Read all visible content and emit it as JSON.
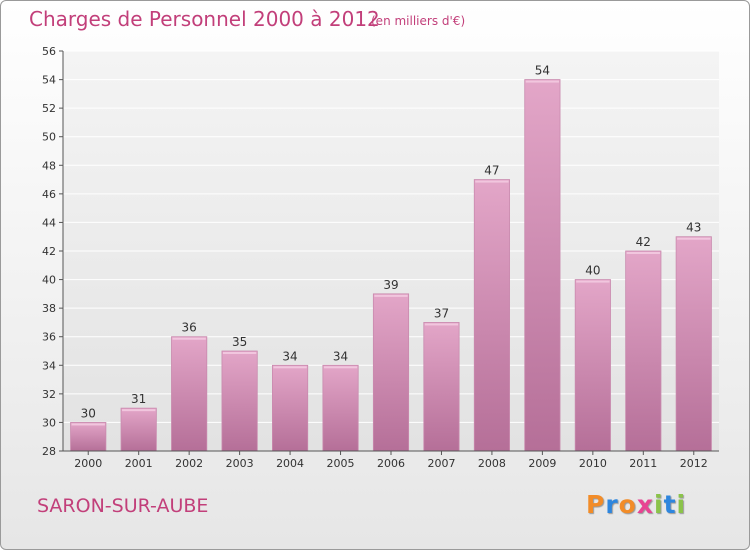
{
  "header": {
    "title": "Charges de Personnel 2000 à 2012",
    "subtitle": "(en milliers d'€)"
  },
  "footer": {
    "commune": "SARON-SUR-AUBE",
    "logo_text": "Proxiti",
    "logo_colors": [
      "#f28c28",
      "#2e86de",
      "#f28c28",
      "#e84393",
      "#8bc34a",
      "#2e86de",
      "#8bc34a"
    ]
  },
  "chart_data": {
    "type": "bar",
    "categories": [
      "2000",
      "2001",
      "2002",
      "2003",
      "2004",
      "2005",
      "2006",
      "2007",
      "2008",
      "2009",
      "2010",
      "2011",
      "2012"
    ],
    "values": [
      30,
      31,
      36,
      35,
      34,
      34,
      39,
      37,
      47,
      54,
      40,
      42,
      43
    ],
    "data_labels": [
      "30",
      "31",
      "36",
      "35",
      "34",
      "34",
      "39",
      "37",
      "47",
      "54",
      "40",
      "42",
      "43"
    ],
    "ylim": [
      28,
      56
    ],
    "yticks": [
      28,
      30,
      32,
      34,
      36,
      38,
      40,
      42,
      44,
      46,
      48,
      50,
      52,
      54,
      56
    ],
    "grid": true,
    "bar_color": "#d98cb3"
  }
}
